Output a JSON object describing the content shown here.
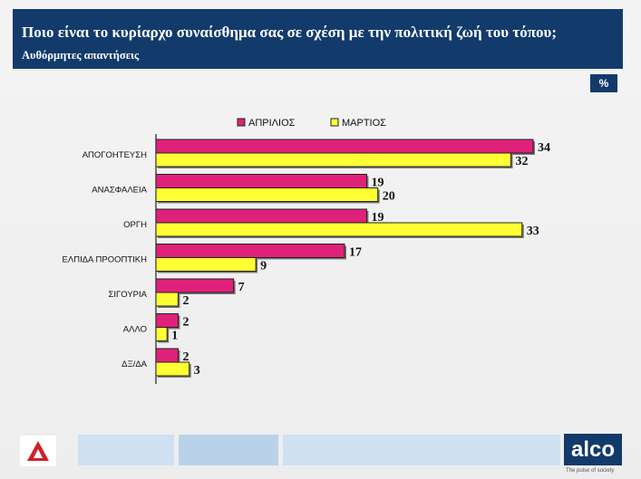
{
  "header": {
    "title": "Ποιο είναι το κυρίαρχο συναίσθημα σας σε σχέση με την πολιτική ζωή του τόπου;",
    "subtitle": "Αυθόρμητες απαντήσεις"
  },
  "badge": "%",
  "footer": {
    "brand": "alco",
    "tagline": "The pulse of society"
  },
  "colors": {
    "header_bg": "#123b6b",
    "april": "#e0217a",
    "march": "#ffff33"
  },
  "chart_data": {
    "type": "bar",
    "orientation": "horizontal",
    "categories": [
      "ΑΠΟΓΟΗΤΕΥΣΗ",
      "ΑΝΑΣΦΑΛΕΙΑ",
      "ΟΡΓΗ",
      "ΕΛΠΙΔΑ ΠΡΟΟΠΤΙΚΗ",
      "ΣΙΓΟΥΡΙΑ",
      "ΑΛΛΟ",
      "ΔΞ/ΔΑ"
    ],
    "series": [
      {
        "name": "ΑΠΡΙΛΙΟΣ",
        "values": [
          34,
          19,
          19,
          17,
          7,
          2,
          2
        ],
        "color": "#e0217a"
      },
      {
        "name": "ΜΑΡΤΙΟΣ",
        "values": [
          32,
          20,
          33,
          9,
          2,
          1,
          3
        ],
        "color": "#ffff33"
      }
    ],
    "xlim": [
      0,
      34
    ],
    "legend": "top-center",
    "grid": false,
    "data_labels": true
  }
}
